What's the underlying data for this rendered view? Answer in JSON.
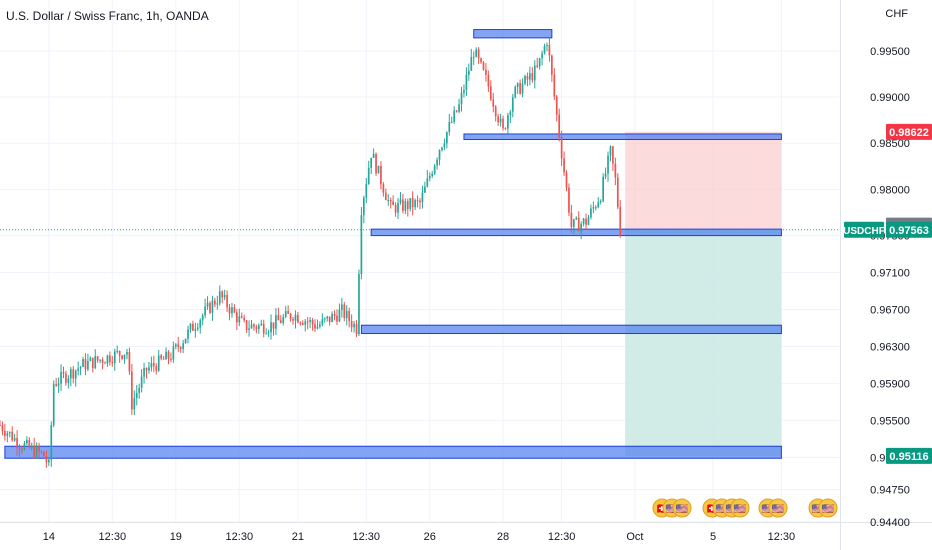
{
  "legend": {
    "title": "U.S. Dollar / Swiss Franc, 1h, OANDA"
  },
  "price_axis": {
    "currency": "CHF"
  },
  "colors": {
    "up": "#26a69a",
    "down": "#ef5350",
    "zone_fill": "#4f7df0",
    "zone_stroke": "#1e3fd6",
    "stop_fill": "#f9cfcf",
    "target_fill": "#c9e8e3",
    "last_price_line": "#26a69a",
    "badge_red": "#f23645",
    "badge_gray": "#787b86",
    "badge_green": "#089981"
  },
  "chart_data": {
    "type": "candlestick",
    "title": "U.S. Dollar / Swiss Franc, 1h, OANDA",
    "symbol": "USDCHF",
    "ylim": [
      0.944,
      1.0005
    ],
    "y_ticks": [
      "0.99500",
      "0.99000",
      "0.98500",
      "0.98000",
      "0.97500",
      "0.97100",
      "0.96700",
      "0.96300",
      "0.95900",
      "0.95500",
      "0.95100",
      "0.94750",
      "0.94400"
    ],
    "x_ticks": [
      "14",
      "12:30",
      "19",
      "12:30",
      "21",
      "12:30",
      "26",
      "28",
      "12:30",
      "Oct",
      "5",
      "12:30"
    ],
    "x_tick_index": [
      10,
      23,
      36,
      49,
      61,
      75,
      88,
      103,
      115,
      130,
      146,
      160
    ],
    "x_range": [
      0,
      172
    ],
    "last_candle_index": 127,
    "trend_points": [
      [
        0,
        0.9545
      ],
      [
        4,
        0.9525
      ],
      [
        9,
        0.9512
      ],
      [
        10,
        0.95
      ],
      [
        11,
        0.959
      ],
      [
        17,
        0.961
      ],
      [
        26,
        0.9625
      ],
      [
        27,
        0.9568
      ],
      [
        30,
        0.9605
      ],
      [
        35,
        0.962
      ],
      [
        40,
        0.9655
      ],
      [
        45,
        0.9685
      ],
      [
        50,
        0.9652
      ],
      [
        55,
        0.9652
      ],
      [
        60,
        0.9665
      ],
      [
        65,
        0.9652
      ],
      [
        70,
        0.9668
      ],
      [
        73,
        0.965
      ],
      [
        74,
        0.978
      ],
      [
        76,
        0.984
      ],
      [
        80,
        0.978
      ],
      [
        86,
        0.9785
      ],
      [
        90,
        0.9845
      ],
      [
        94,
        0.989
      ],
      [
        96,
        0.993
      ],
      [
        97,
        0.995
      ],
      [
        100,
        0.9912
      ],
      [
        103,
        0.9862
      ],
      [
        105,
        0.9902
      ],
      [
        110,
        0.993
      ],
      [
        112,
        0.9962
      ],
      [
        114,
        0.988
      ],
      [
        117,
        0.976
      ],
      [
        120,
        0.9765
      ],
      [
        123,
        0.9795
      ],
      [
        125,
        0.984
      ],
      [
        126,
        0.981
      ],
      [
        127,
        0.9756
      ]
    ],
    "zones": [
      {
        "from": 97,
        "to": 113,
        "low": 0.9964,
        "high": 0.9973
      },
      {
        "from": 95,
        "to": 160,
        "low": 0.9854,
        "high": 0.986
      },
      {
        "from": 76,
        "to": 160,
        "low": 0.975,
        "high": 0.9757
      },
      {
        "from": 74,
        "to": 160,
        "low": 0.9644,
        "high": 0.9653
      },
      {
        "from": 1,
        "to": 160,
        "low": 0.9509,
        "high": 0.9522
      }
    ],
    "position": {
      "from": 128,
      "to": 160,
      "entry": 0.97563,
      "stop": 0.98622,
      "target": 0.95116
    },
    "price_badges": [
      {
        "label": "0.98622",
        "value": 0.98622,
        "role": "stop"
      },
      {
        "label": "0.97608",
        "value": 0.97608,
        "role": "last"
      },
      {
        "label": "0.97563",
        "value": 0.97563,
        "role": "current",
        "tag": "USDCHF"
      },
      {
        "label": "0.95116",
        "value": 0.95116,
        "role": "target"
      }
    ],
    "event_markers": [
      "🇨🇭",
      "🇺🇸",
      "🇺🇸",
      "🇨🇭",
      "🇺🇸",
      "🇺🇸",
      "🇺🇸",
      "🇺🇸",
      "🇺🇸",
      "🇺🇸",
      "🇺🇸"
    ]
  }
}
